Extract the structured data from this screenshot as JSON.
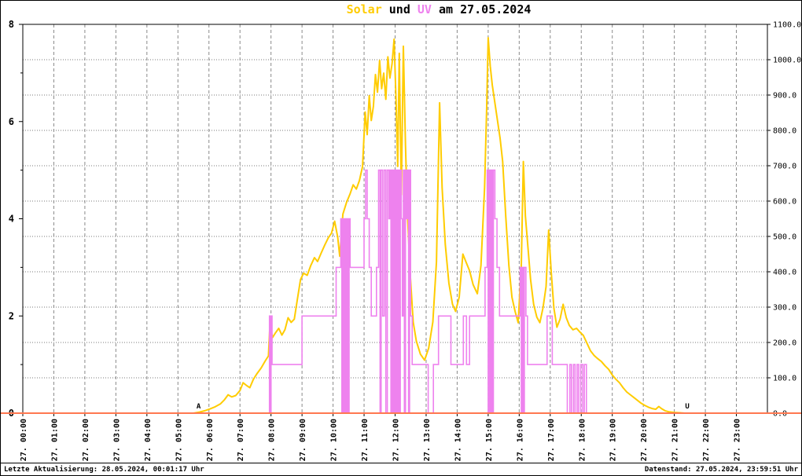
{
  "title": {
    "solar": "Solar",
    "conj": " und ",
    "uv": "UV",
    "date_suffix": " am 27.05.2024",
    "full": "Solar und UV am 27.05.2024"
  },
  "footer": {
    "last_update": "Letzte Aktualisierung: 28.05.2024, 00:01:17 Uhr",
    "data_timestamp": "Datenstand: 27.05.2024, 23:59:51 Uhr"
  },
  "colors": {
    "solar": "#FFCC00",
    "uv": "#EE82EE",
    "zero_line": "#FF7850",
    "grid_dash": "#8A8A8A",
    "grid_dot": "#7A7A7A",
    "axis": "#000000"
  },
  "chart_data": {
    "type": "line",
    "title": "Solar und UV am 27.05.2024",
    "grid": {
      "vertical_dashed_hourly": true,
      "horizontal_dotted_step": 100
    },
    "x": {
      "hours": 24,
      "tick_labels": [
        "27. 00:00",
        "27. 01:00",
        "27. 02:00",
        "27. 03:00",
        "27. 04:00",
        "27. 05:00",
        "27. 06:00",
        "27. 07:00",
        "27. 08:00",
        "27. 09:00",
        "27. 10:00",
        "27. 11:00",
        "27. 12:00",
        "27. 13:00",
        "27. 14:00",
        "27. 15:00",
        "27. 16:00",
        "27. 17:00",
        "27. 18:00",
        "27. 19:00",
        "27. 20:00",
        "27. 21:00",
        "27. 22:00",
        "27. 23:00"
      ]
    },
    "y_left": {
      "min": 0,
      "max": 8,
      "minor_tick_step": 1,
      "tick_labels": [
        "8",
        "6",
        "4",
        "2",
        "0"
      ]
    },
    "y_right": {
      "min": 0,
      "max": 1100,
      "tick_labels": [
        "1100.0",
        "1000.0",
        "900.0",
        "800.0",
        "700.0",
        "600.0",
        "500.0",
        "400.0",
        "300.0",
        "200.0",
        "100.0",
        "0.0"
      ]
    },
    "markers": [
      {
        "name": "sunrise-marker",
        "label": "A",
        "time": "05:40",
        "color": "#CC2200"
      },
      {
        "name": "sunset-marker",
        "label": "U",
        "time": "21:25",
        "color": "#EE82EE"
      }
    ],
    "series": [
      {
        "name": "Solar",
        "axis": "right",
        "color_key": "solar",
        "style": "line",
        "points": [
          [
            "00:00",
            0
          ],
          [
            "05:30",
            0
          ],
          [
            "05:42",
            3
          ],
          [
            "05:52",
            7
          ],
          [
            "06:02",
            12
          ],
          [
            "06:12",
            18
          ],
          [
            "06:22",
            26
          ],
          [
            "06:30",
            38
          ],
          [
            "06:37",
            52
          ],
          [
            "06:44",
            46
          ],
          [
            "06:52",
            50
          ],
          [
            "07:00",
            64
          ],
          [
            "07:06",
            86
          ],
          [
            "07:12",
            79
          ],
          [
            "07:19",
            72
          ],
          [
            "07:26",
            96
          ],
          [
            "07:33",
            112
          ],
          [
            "07:41",
            128
          ],
          [
            "07:49",
            148
          ],
          [
            "07:55",
            162
          ],
          [
            "07:58",
            252
          ],
          [
            "08:03",
            214
          ],
          [
            "08:09",
            228
          ],
          [
            "08:15",
            240
          ],
          [
            "08:21",
            221
          ],
          [
            "08:27",
            236
          ],
          [
            "08:33",
            270
          ],
          [
            "08:39",
            257
          ],
          [
            "08:45",
            266
          ],
          [
            "08:51",
            322
          ],
          [
            "08:57",
            378
          ],
          [
            "09:03",
            396
          ],
          [
            "09:10",
            390
          ],
          [
            "09:17",
            418
          ],
          [
            "09:24",
            440
          ],
          [
            "09:30",
            429
          ],
          [
            "09:37",
            453
          ],
          [
            "09:44",
            476
          ],
          [
            "09:51",
            497
          ],
          [
            "09:57",
            509
          ],
          [
            "10:03",
            543
          ],
          [
            "10:09",
            498
          ],
          [
            "10:13",
            444
          ],
          [
            "10:19",
            563
          ],
          [
            "10:26",
            596
          ],
          [
            "10:33",
            621
          ],
          [
            "10:39",
            646
          ],
          [
            "10:45",
            634
          ],
          [
            "10:51",
            658
          ],
          [
            "10:57",
            698
          ],
          [
            "11:02",
            852
          ],
          [
            "11:06",
            788
          ],
          [
            "11:10",
            898
          ],
          [
            "11:14",
            828
          ],
          [
            "11:18",
            868
          ],
          [
            "11:22",
            958
          ],
          [
            "11:26",
            908
          ],
          [
            "11:30",
            998
          ],
          [
            "11:34",
            918
          ],
          [
            "11:38",
            962
          ],
          [
            "11:42",
            888
          ],
          [
            "11:46",
            1008
          ],
          [
            "11:50",
            948
          ],
          [
            "11:54",
            988
          ],
          [
            "11:58",
            1058
          ],
          [
            "12:02",
            878
          ],
          [
            "12:05",
            698
          ],
          [
            "12:08",
            1018
          ],
          [
            "12:12",
            618
          ],
          [
            "12:16",
            1038
          ],
          [
            "12:20",
            758
          ],
          [
            "12:24",
            558
          ],
          [
            "12:29",
            398
          ],
          [
            "12:35",
            258
          ],
          [
            "12:41",
            204
          ],
          [
            "12:49",
            167
          ],
          [
            "12:57",
            150
          ],
          [
            "13:05",
            184
          ],
          [
            "13:13",
            258
          ],
          [
            "13:20",
            428
          ],
          [
            "13:26",
            878
          ],
          [
            "13:31",
            638
          ],
          [
            "13:37",
            478
          ],
          [
            "13:44",
            368
          ],
          [
            "13:51",
            308
          ],
          [
            "13:57",
            288
          ],
          [
            "14:04",
            328
          ],
          [
            "14:11",
            450
          ],
          [
            "14:17",
            428
          ],
          [
            "14:24",
            403
          ],
          [
            "14:31",
            363
          ],
          [
            "14:39",
            338
          ],
          [
            "14:46",
            418
          ],
          [
            "14:53",
            638
          ],
          [
            "14:57",
            858
          ],
          [
            "15:00",
            1062
          ],
          [
            "15:04",
            982
          ],
          [
            "15:08",
            928
          ],
          [
            "15:13",
            878
          ],
          [
            "15:18",
            828
          ],
          [
            "15:23",
            778
          ],
          [
            "15:28",
            712
          ],
          [
            "15:34",
            558
          ],
          [
            "15:40",
            418
          ],
          [
            "15:46",
            328
          ],
          [
            "15:52",
            288
          ],
          [
            "15:58",
            256
          ],
          [
            "16:04",
            418
          ],
          [
            "16:08",
            712
          ],
          [
            "16:12",
            558
          ],
          [
            "16:17",
            468
          ],
          [
            "16:22",
            378
          ],
          [
            "16:28",
            308
          ],
          [
            "16:34",
            272
          ],
          [
            "16:40",
            256
          ],
          [
            "16:46",
            298
          ],
          [
            "16:52",
            358
          ],
          [
            "16:57",
            518
          ],
          [
            "17:02",
            398
          ],
          [
            "17:07",
            298
          ],
          [
            "17:13",
            243
          ],
          [
            "17:19",
            266
          ],
          [
            "17:25",
            308
          ],
          [
            "17:31",
            270
          ],
          [
            "17:37",
            248
          ],
          [
            "17:44",
            236
          ],
          [
            "17:51",
            240
          ],
          [
            "17:57",
            230
          ],
          [
            "18:04",
            220
          ],
          [
            "18:11",
            198
          ],
          [
            "18:18",
            176
          ],
          [
            "18:25",
            163
          ],
          [
            "18:32",
            154
          ],
          [
            "18:39",
            146
          ],
          [
            "18:46",
            134
          ],
          [
            "18:53",
            124
          ],
          [
            "19:00",
            108
          ],
          [
            "19:07",
            96
          ],
          [
            "19:14",
            86
          ],
          [
            "19:21",
            72
          ],
          [
            "19:28",
            60
          ],
          [
            "19:35",
            52
          ],
          [
            "19:42",
            44
          ],
          [
            "19:49",
            36
          ],
          [
            "19:56",
            28
          ],
          [
            "20:03",
            22
          ],
          [
            "20:10",
            17
          ],
          [
            "20:17",
            13
          ],
          [
            "20:24",
            11
          ],
          [
            "20:30",
            19
          ],
          [
            "20:35",
            13
          ],
          [
            "20:42",
            7
          ],
          [
            "20:49",
            4
          ],
          [
            "21:00",
            2
          ],
          [
            "21:10",
            1
          ],
          [
            "21:20",
            0
          ],
          [
            "23:59",
            0
          ]
        ]
      },
      {
        "name": "UV",
        "axis": "left",
        "color_key": "uv",
        "style": "step",
        "points": [
          [
            "00:00",
            0
          ],
          [
            "07:57",
            2
          ],
          [
            "07:59",
            0
          ],
          [
            "08:00",
            2
          ],
          [
            "08:02",
            1
          ],
          [
            "09:00",
            2
          ],
          [
            "10:06",
            3
          ],
          [
            "10:15",
            4
          ],
          [
            "10:17",
            0
          ],
          [
            "10:19",
            4
          ],
          [
            "10:21",
            0
          ],
          [
            "10:23",
            4
          ],
          [
            "10:25",
            0
          ],
          [
            "10:27",
            4
          ],
          [
            "10:29",
            0
          ],
          [
            "10:31",
            4
          ],
          [
            "10:33",
            3
          ],
          [
            "11:00",
            4
          ],
          [
            "11:03",
            5
          ],
          [
            "11:06",
            4
          ],
          [
            "11:10",
            3
          ],
          [
            "11:14",
            2
          ],
          [
            "11:24",
            3
          ],
          [
            "11:28",
            5
          ],
          [
            "11:31",
            0
          ],
          [
            "11:33",
            5
          ],
          [
            "11:36",
            2
          ],
          [
            "11:39",
            5
          ],
          [
            "11:42",
            0
          ],
          [
            "11:45",
            5
          ],
          [
            "11:48",
            4
          ],
          [
            "11:50",
            5
          ],
          [
            "11:52",
            0
          ],
          [
            "11:54",
            5
          ],
          [
            "11:56",
            0
          ],
          [
            "11:58",
            5
          ],
          [
            "12:00",
            0
          ],
          [
            "12:02",
            5
          ],
          [
            "12:04",
            0
          ],
          [
            "12:06",
            5
          ],
          [
            "12:08",
            0
          ],
          [
            "12:10",
            5
          ],
          [
            "12:12",
            4
          ],
          [
            "12:14",
            2
          ],
          [
            "12:16",
            5
          ],
          [
            "12:18",
            0
          ],
          [
            "12:20",
            5
          ],
          [
            "12:22",
            4
          ],
          [
            "12:24",
            5
          ],
          [
            "12:26",
            0
          ],
          [
            "12:28",
            5
          ],
          [
            "12:30",
            2
          ],
          [
            "12:33",
            1
          ],
          [
            "13:04",
            0
          ],
          [
            "13:14",
            1
          ],
          [
            "13:24",
            2
          ],
          [
            "13:48",
            1
          ],
          [
            "14:12",
            2
          ],
          [
            "14:18",
            1
          ],
          [
            "14:24",
            2
          ],
          [
            "14:54",
            3
          ],
          [
            "14:58",
            5
          ],
          [
            "15:00",
            0
          ],
          [
            "15:02",
            5
          ],
          [
            "15:04",
            0
          ],
          [
            "15:06",
            5
          ],
          [
            "15:08",
            0
          ],
          [
            "15:10",
            5
          ],
          [
            "15:13",
            4
          ],
          [
            "15:17",
            3
          ],
          [
            "15:22",
            2
          ],
          [
            "16:02",
            3
          ],
          [
            "16:04",
            0
          ],
          [
            "16:06",
            3
          ],
          [
            "16:08",
            0
          ],
          [
            "16:10",
            3
          ],
          [
            "16:13",
            2
          ],
          [
            "16:16",
            1
          ],
          [
            "16:54",
            2
          ],
          [
            "17:04",
            1
          ],
          [
            "17:33",
            0
          ],
          [
            "17:38",
            1
          ],
          [
            "17:41",
            0
          ],
          [
            "17:45",
            1
          ],
          [
            "17:48",
            0
          ],
          [
            "17:52",
            1
          ],
          [
            "17:55",
            0
          ],
          [
            "17:59",
            1
          ],
          [
            "18:03",
            0
          ],
          [
            "18:06",
            1
          ],
          [
            "18:10",
            0
          ]
        ]
      }
    ]
  }
}
